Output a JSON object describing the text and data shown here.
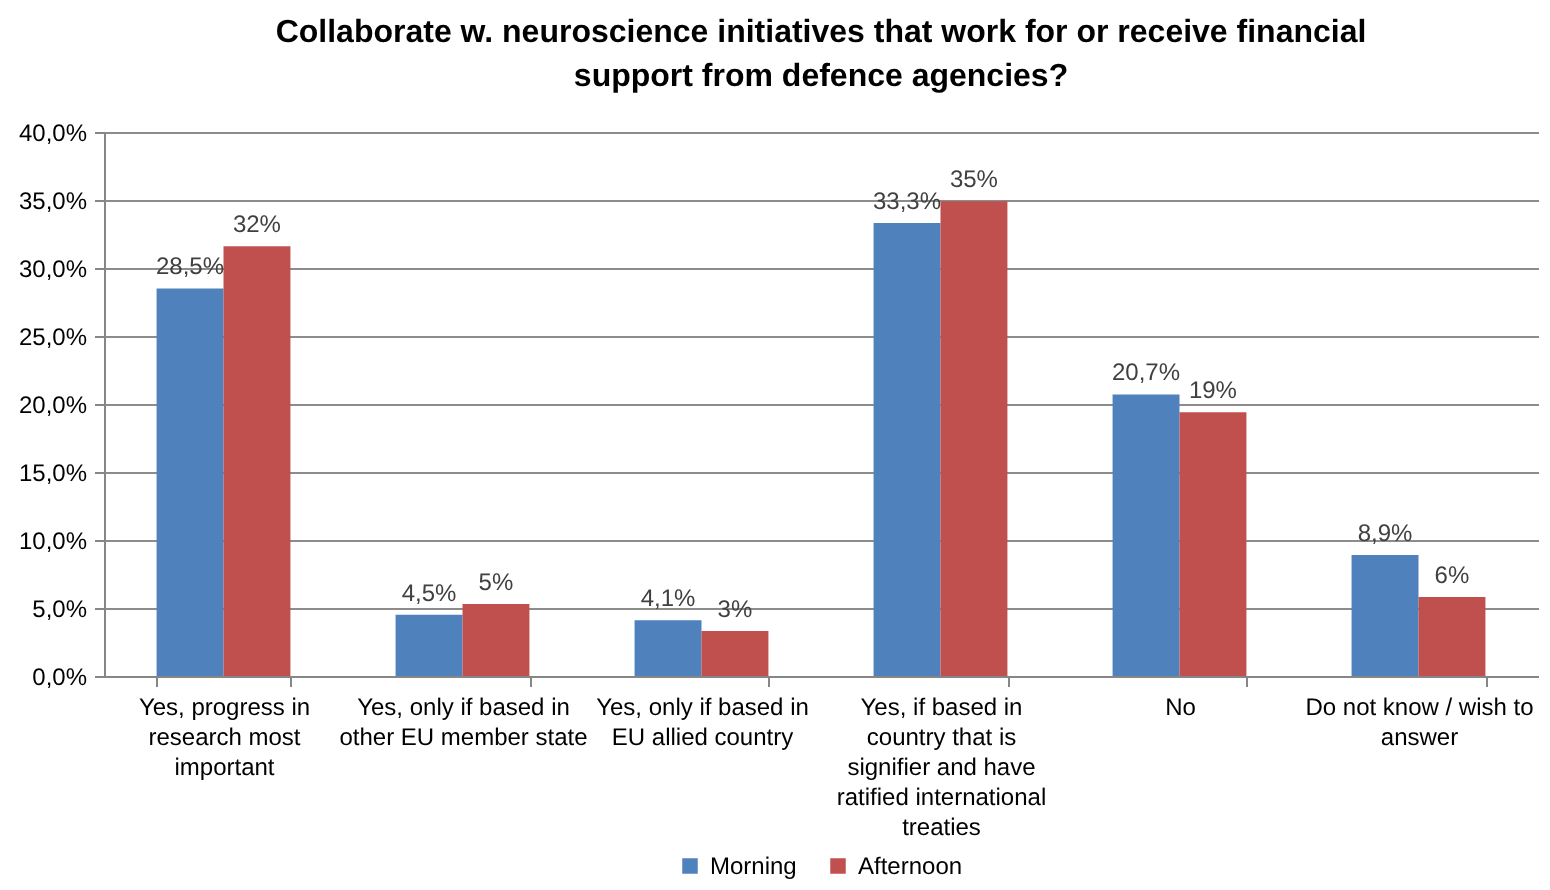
{
  "chart_data": {
    "type": "bar",
    "title": "Collaborate w. neuroscience initiatives that work for or receive financial support from defence agencies?",
    "categories": [
      "Yes, progress in research  most important",
      "Yes, only if based in other EU member state",
      "Yes, only if based in EU allied country",
      "Yes, if based in country that is signifier and have ratified international treaties",
      "No",
      "Do not know / wish to answer"
    ],
    "series": [
      {
        "name": "Morning",
        "color": "#4f81bd",
        "values": [
          28.5,
          4.5,
          4.1,
          33.3,
          20.7,
          8.9
        ],
        "value_labels": [
          "28,5%",
          "4,5%",
          "4,1%",
          "33,3%",
          "20,7%",
          "8,9%"
        ]
      },
      {
        "name": "Afternoon",
        "color": "#c0504d",
        "values": [
          31.6,
          5.3,
          3.3,
          34.9,
          19.4,
          5.8
        ],
        "value_labels": [
          "32%",
          "5%",
          "3%",
          "35%",
          "19%",
          "6%"
        ]
      }
    ],
    "ylim": [
      0,
      40
    ],
    "yticks": [
      {
        "value": 0,
        "label": "0,0%"
      },
      {
        "value": 5,
        "label": "5,0%"
      },
      {
        "value": 10,
        "label": "10,0%"
      },
      {
        "value": 15,
        "label": "15,0%"
      },
      {
        "value": 20,
        "label": "20,0%"
      },
      {
        "value": 25,
        "label": "25,0%"
      },
      {
        "value": 30,
        "label": "30,0%"
      },
      {
        "value": 35,
        "label": "35,0%"
      },
      {
        "value": 40,
        "label": "40,0%"
      }
    ],
    "grid": "y",
    "legend": "bottom"
  }
}
